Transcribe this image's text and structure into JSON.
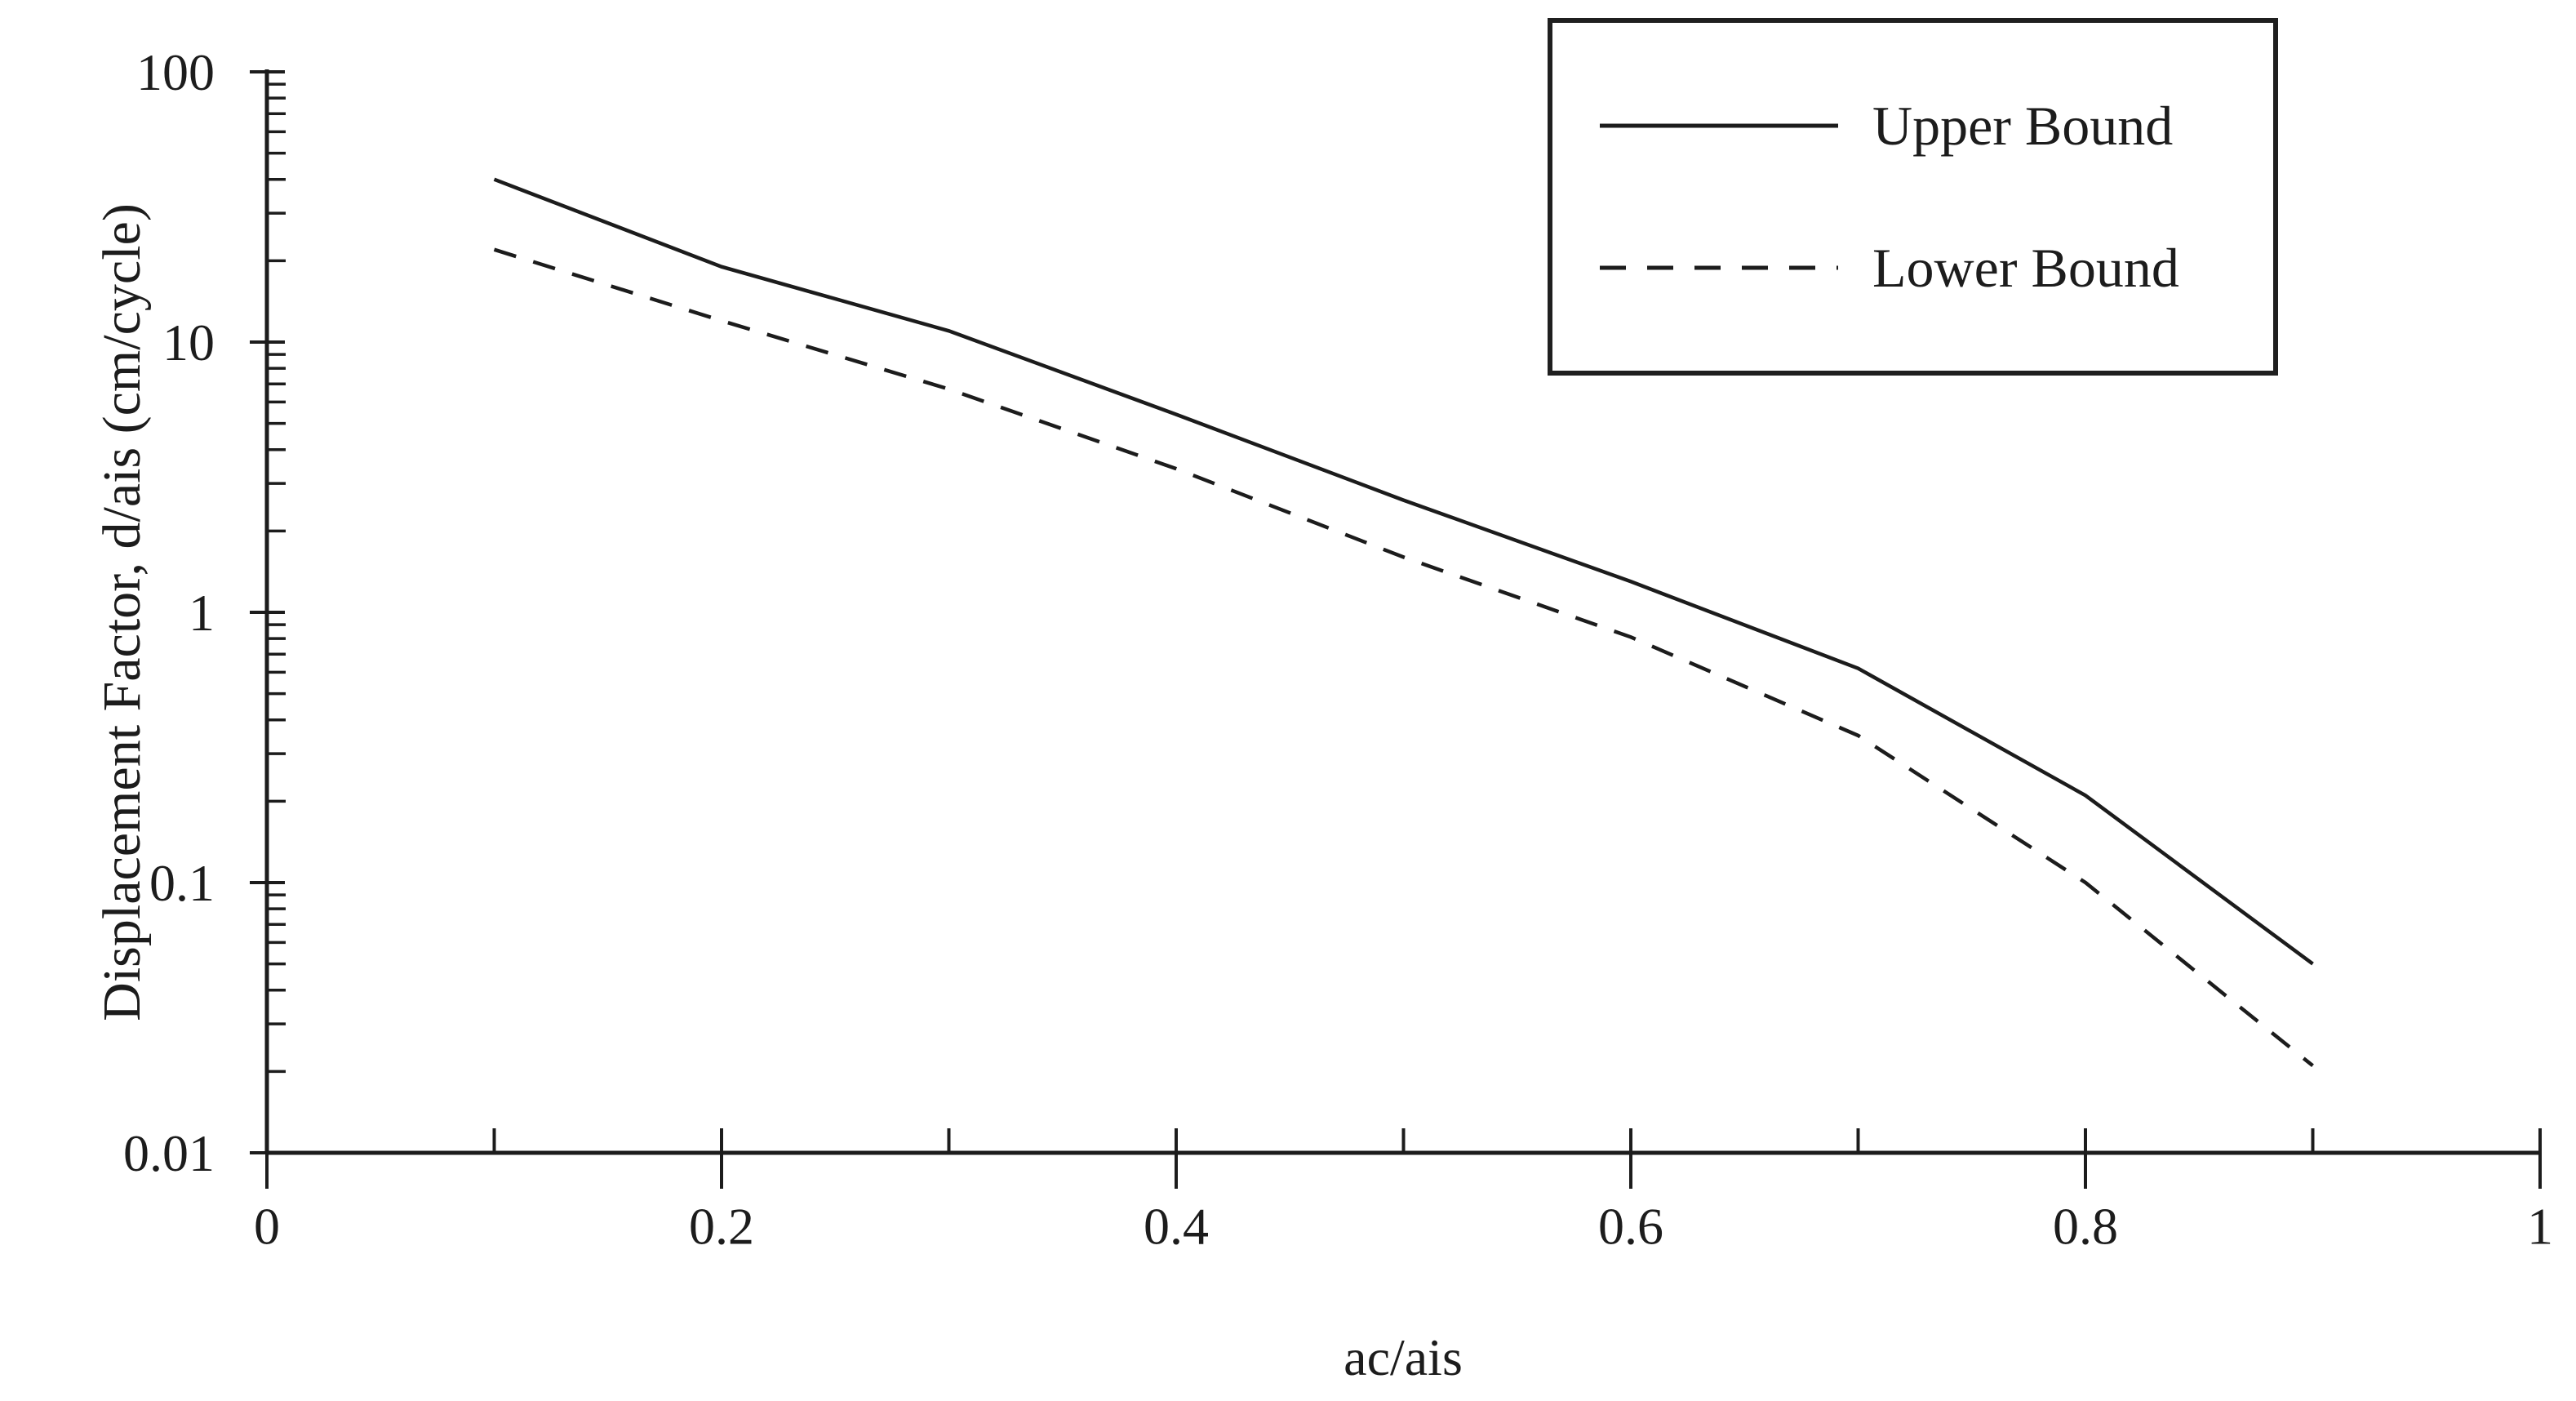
{
  "figure": {
    "background": "#ffffff",
    "ink_color": "#1c1c1c"
  },
  "chart_data": {
    "type": "line",
    "title": "",
    "xlabel": "ac/ais",
    "ylabel": "Displacement Factor, d/ais (cm/cycle)",
    "xlim": [
      0,
      1
    ],
    "ylim": [
      0.01,
      100
    ],
    "yscale": "log",
    "grid": false,
    "legend_position": "top-right",
    "x": [
      0.1,
      0.2,
      0.3,
      0.4,
      0.5,
      0.6,
      0.7,
      0.8,
      0.9
    ],
    "series": [
      {
        "name": "Upper Bound",
        "line_style": "solid",
        "values": [
          40,
          19,
          11,
          5.4,
          2.6,
          1.3,
          0.62,
          0.21,
          0.05
        ]
      },
      {
        "name": "Lower Bound",
        "line_style": "dashed",
        "values": [
          22,
          12,
          6.7,
          3.4,
          1.6,
          0.81,
          0.35,
          0.1,
          0.021
        ]
      }
    ],
    "x_major_ticks": {
      "values": [
        0,
        0.2,
        0.4,
        0.6,
        0.8,
        1
      ],
      "labels": [
        "0",
        "0.2",
        "0.4",
        "0.6",
        "0.8",
        "1"
      ]
    },
    "x_minor_ticks": [
      0.1,
      0.3,
      0.5,
      0.7,
      0.9
    ],
    "y_major_ticks": {
      "values": [
        100,
        10,
        1,
        0.1,
        0.01
      ],
      "labels": [
        "100",
        "10",
        "1",
        "0.1",
        "0.01"
      ]
    }
  }
}
